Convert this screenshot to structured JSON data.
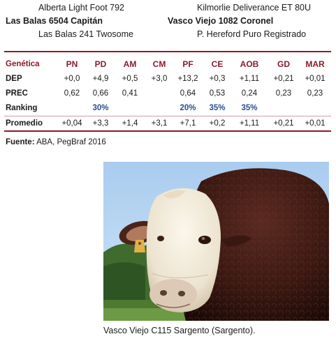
{
  "pedigree": {
    "left": {
      "sire": "Alberta Light Foot 792",
      "animal": "Las Balas 6504 Capitán",
      "dam": "Las Balas 241 Twosome"
    },
    "right": {
      "sire": "Kilmorlie Deliverance ET 80U",
      "animal": "Vasco Viejo 1082 Coronel",
      "dam": "P. Hereford Puro Registrado"
    }
  },
  "table": {
    "header_label": "Genética",
    "columns": [
      "PN",
      "PD",
      "AM",
      "CM",
      "PF",
      "CE",
      "AOB",
      "GD",
      "MAR"
    ],
    "rows": [
      {
        "label": "DEP",
        "values": [
          "+0,0",
          "+4,9",
          "+0,5",
          "+3,0",
          "+13,2",
          "+0,3",
          "+1,11",
          "+0,21",
          "+0,01"
        ]
      },
      {
        "label": "PREC",
        "values": [
          "0,62",
          "0,66",
          "0,41",
          "",
          "0,64",
          "0,53",
          "0,24",
          "0,23",
          "0,23"
        ]
      },
      {
        "label": "Ranking",
        "values": [
          "",
          "30%",
          "",
          "",
          "20%",
          "35%",
          "35%",
          "",
          ""
        ]
      }
    ],
    "average": {
      "label": "Promedio",
      "values": [
        "+0,04",
        "+3,3",
        "+1,4",
        "+3,1",
        "+7,1",
        "+0,2",
        "+1,11",
        "+0,21",
        "+0,01"
      ]
    },
    "colors": {
      "header": "#8b1a2b",
      "ranking": "#2a4f8f",
      "rule": "#8b1a2b"
    }
  },
  "source": {
    "label": "Fuente:",
    "text": " ABA, PegBraf 2016"
  },
  "photo": {
    "caption": "Vasco Viejo C115 Sargento (Sargento)."
  }
}
